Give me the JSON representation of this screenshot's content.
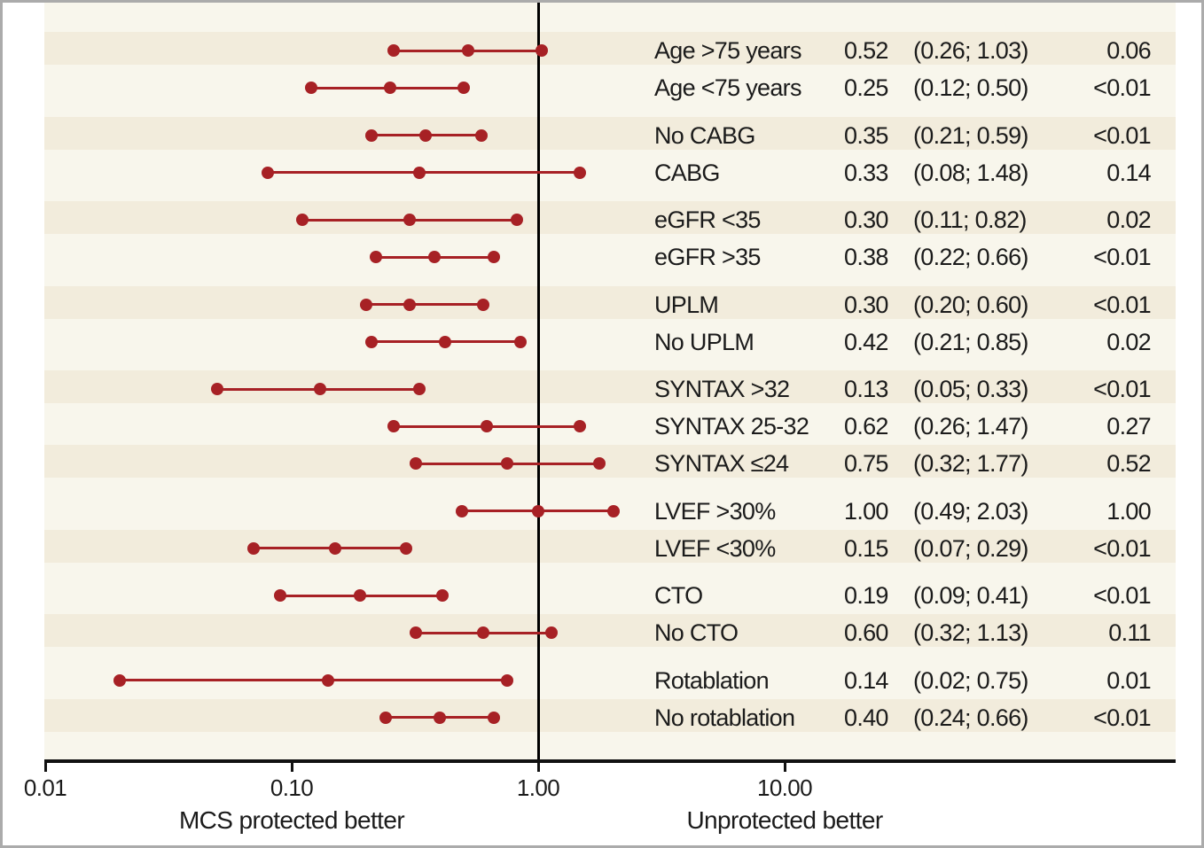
{
  "chart_data": {
    "type": "forest",
    "title": "",
    "x_axis": {
      "scale": "log10",
      "tick_labels": [
        "0.01",
        "0.10",
        "1.00",
        "10.00"
      ],
      "tick_values": [
        0.01,
        0.1,
        1.0,
        10.0
      ],
      "reference_value": 1.0,
      "caption_left": "MCS protected better",
      "caption_right": "Unprotected better"
    },
    "colors": {
      "marker": "#a72125",
      "stripe": "#f2ecdc",
      "plot_background": "#f8f6ec",
      "reference_line": "#000000",
      "axis": "#111111",
      "frame_border": "#ababab",
      "text": "#1b1b1b"
    },
    "rows": [
      {
        "label": "Age >75 years",
        "est": "0.52",
        "lo": "0.26",
        "hi": "1.03",
        "p": "0.06",
        "gap_before": false
      },
      {
        "label": "Age <75 years",
        "est": "0.25",
        "lo": "0.12",
        "hi": "0.50",
        "p": "<0.01",
        "gap_before": false
      },
      {
        "label": "No CABG",
        "est": "0.35",
        "lo": "0.21",
        "hi": "0.59",
        "p": "<0.01",
        "gap_before": true
      },
      {
        "label": "CABG",
        "est": "0.33",
        "lo": "0.08",
        "hi": "1.48",
        "p": "0.14",
        "gap_before": false
      },
      {
        "label": "eGFR <35",
        "est": "0.30",
        "lo": "0.11",
        "hi": "0.82",
        "p": "0.02",
        "gap_before": true
      },
      {
        "label": "eGFR >35",
        "est": "0.38",
        "lo": "0.22",
        "hi": "0.66",
        "p": "<0.01",
        "gap_before": false
      },
      {
        "label": "UPLM",
        "est": "0.30",
        "lo": "0.20",
        "hi": "0.60",
        "p": "<0.01",
        "gap_before": true
      },
      {
        "label": "No UPLM",
        "est": "0.42",
        "lo": "0.21",
        "hi": "0.85",
        "p": "0.02",
        "gap_before": false
      },
      {
        "label": "SYNTAX >32",
        "est": "0.13",
        "lo": "0.05",
        "hi": "0.33",
        "p": "<0.01",
        "gap_before": true
      },
      {
        "label": "SYNTAX 25-32",
        "est": "0.62",
        "lo": "0.26",
        "hi": "1.47",
        "p": "0.27",
        "gap_before": false
      },
      {
        "label": "SYNTAX ≤24",
        "est": "0.75",
        "lo": "0.32",
        "hi": "1.77",
        "p": "0.52",
        "gap_before": false
      },
      {
        "label": "LVEF >30%",
        "est": "1.00",
        "lo": "0.49",
        "hi": "2.03",
        "p": "1.00",
        "gap_before": true
      },
      {
        "label": "LVEF <30%",
        "est": "0.15",
        "lo": "0.07",
        "hi": "0.29",
        "p": "<0.01",
        "gap_before": false
      },
      {
        "label": "CTO",
        "est": "0.19",
        "lo": "0.09",
        "hi": "0.41",
        "p": "<0.01",
        "gap_before": true
      },
      {
        "label": "No CTO",
        "est": "0.60",
        "lo": "0.32",
        "hi": "1.13",
        "p": "0.11",
        "gap_before": false
      },
      {
        "label": "Rotablation",
        "est": "0.14",
        "lo": "0.02",
        "hi": "0.75",
        "p": "0.01",
        "gap_before": true
      },
      {
        "label": "No rotablation",
        "est": "0.40",
        "lo": "0.24",
        "hi": "0.66",
        "p": "<0.01",
        "gap_before": false
      }
    ]
  }
}
